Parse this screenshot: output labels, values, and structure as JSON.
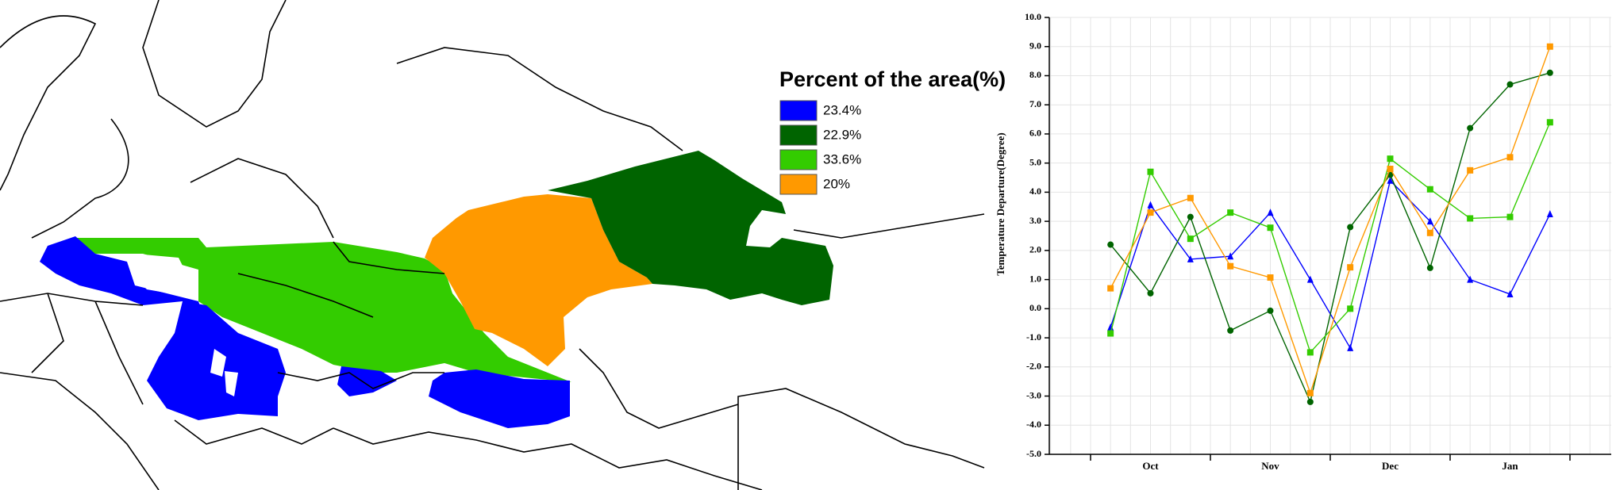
{
  "map": {
    "legend_title": "Percent of the area(%)",
    "legend": [
      {
        "label": "23.4%",
        "color": "#0000ff"
      },
      {
        "label": "22.9%",
        "color": "#006400"
      },
      {
        "label": "33.6%",
        "color": "#33cc00"
      },
      {
        "label": "20%",
        "color": "#ff9900"
      }
    ]
  },
  "chart_data": {
    "type": "line",
    "y_label": "Temperature Departure(Degree)",
    "categories": [
      null,
      "Oct",
      null,
      null,
      "Nov",
      null,
      null,
      "Dec",
      null,
      null,
      "Jan",
      null
    ],
    "ylim": [
      -5,
      10
    ],
    "yticks": [
      {
        "value": -5,
        "label": "-5.0"
      },
      {
        "value": -4,
        "label": "-4.0"
      },
      {
        "value": -3,
        "label": "-3.0"
      },
      {
        "value": -2,
        "label": "-2.0"
      },
      {
        "value": -1,
        "label": "-1.0"
      },
      {
        "value": 0,
        "label": "0.0"
      },
      {
        "value": 1,
        "label": "1.0"
      },
      {
        "value": 2,
        "label": "2.0"
      },
      {
        "value": 3,
        "label": "3.0"
      },
      {
        "value": 4,
        "label": "4.0"
      },
      {
        "value": 5,
        "label": "5.0"
      },
      {
        "value": 6,
        "label": "6.0"
      },
      {
        "value": 7,
        "label": "7.0"
      },
      {
        "value": 8,
        "label": "8.0"
      },
      {
        "value": 9,
        "label": "9.0"
      },
      {
        "value": 10,
        "label": "10.0"
      }
    ],
    "grid": true,
    "series": [
      {
        "color": "#0000ff",
        "marker": "triangle",
        "values": [
          -0.64,
          3.56,
          1.7,
          1.8,
          3.3,
          1.0,
          -1.35,
          4.4,
          3.0,
          1.0,
          0.5,
          3.25
        ]
      },
      {
        "color": "#006400",
        "marker": "circle",
        "values": [
          2.2,
          0.53,
          3.15,
          -0.75,
          -0.07,
          -3.2,
          2.8,
          4.6,
          1.4,
          6.2,
          7.7,
          8.1
        ]
      },
      {
        "color": "#33cc00",
        "marker": "square",
        "values": [
          -0.85,
          4.7,
          2.4,
          3.3,
          2.78,
          -1.5,
          0.0,
          5.15,
          4.1,
          3.1,
          3.15,
          6.4
        ]
      },
      {
        "color": "#ff9900",
        "marker": "square",
        "values": [
          0.7,
          3.3,
          3.8,
          1.46,
          1.07,
          -2.9,
          1.42,
          4.8,
          2.6,
          4.75,
          5.2,
          9.0
        ]
      }
    ]
  }
}
